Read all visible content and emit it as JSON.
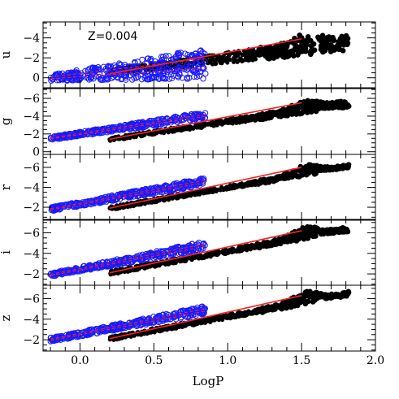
{
  "chart_data": {
    "type": "scatter",
    "annotation": "Z=0.004",
    "xlabel": "LogP",
    "xlim": [
      -0.25,
      2.0
    ],
    "x_ticks": [
      0.0,
      0.5,
      1.0,
      1.5,
      2.0
    ],
    "x_tick_labels": [
      "0.0",
      "0.5",
      "1.0",
      "1.5",
      "2.0"
    ],
    "colors": {
      "fundamental": "#000000",
      "first_overtone": "#1a1aff",
      "fit_line": "#ff2020"
    },
    "panels": [
      {
        "band": "u",
        "ylabel": "u",
        "ylim": [
          1.0,
          -5.6
        ],
        "y_ticks": [
          0,
          -2,
          -4
        ],
        "y_tick_labels": [
          "0",
          "−2",
          "−4"
        ],
        "first_overtone": {
          "x_range": [
            -0.2,
            0.85
          ],
          "y_low": [
            0.3,
            0.1
          ],
          "y_high": [
            -0.3,
            -3.0
          ]
        },
        "fundamental": {
          "x_range": [
            0.2,
            1.82
          ],
          "y_low": [
            -0.3,
            -2.7
          ],
          "y_high": [
            -0.9,
            -4.3
          ],
          "peak_x": 1.55,
          "peak_y": -4.5
        },
        "fit": {
          "x": [
            0.2,
            1.5
          ],
          "y": [
            -0.4,
            -3.9
          ]
        }
      },
      {
        "band": "g",
        "ylabel": "g",
        "ylim": [
          0.3,
          -7.1
        ],
        "y_ticks": [
          0,
          -2,
          -4,
          -6
        ],
        "y_tick_labels": [
          "0",
          "−2",
          "−4",
          "−6"
        ],
        "first_overtone": {
          "x_range": [
            -0.2,
            0.85
          ],
          "y_low": [
            -1.3,
            -3.7
          ],
          "y_high": [
            -1.7,
            -4.5
          ]
        },
        "fundamental": {
          "x_range": [
            0.2,
            1.82
          ],
          "y_low": [
            -1.2,
            -5.0
          ],
          "y_high": [
            -1.6,
            -5.8
          ],
          "peak_x": 1.55,
          "peak_y": -5.8
        },
        "fit": {
          "x": [
            0.2,
            1.5
          ],
          "y": [
            -1.4,
            -5.5
          ]
        }
      },
      {
        "band": "r",
        "ylabel": "r",
        "ylim": [
          -0.7,
          -7.3
        ],
        "y_ticks": [
          -2,
          -4,
          -6
        ],
        "y_tick_labels": [
          "−2",
          "−4",
          "−6"
        ],
        "first_overtone": {
          "x_range": [
            -0.2,
            0.85
          ],
          "y_low": [
            -1.6,
            -4.2
          ],
          "y_high": [
            -2.0,
            -5.0
          ]
        },
        "fundamental": {
          "x_range": [
            0.2,
            1.82
          ],
          "y_low": [
            -1.7,
            -5.9
          ],
          "y_high": [
            -2.1,
            -6.3
          ],
          "peak_x": 1.55,
          "peak_y": -6.3
        },
        "fit": {
          "x": [
            0.2,
            1.5
          ],
          "y": [
            -1.9,
            -6.0
          ]
        }
      },
      {
        "band": "i",
        "ylabel": "i",
        "ylim": [
          -0.9,
          -7.3
        ],
        "y_ticks": [
          -2,
          -4,
          -6
        ],
        "y_tick_labels": [
          "−2",
          "−4",
          "−6"
        ],
        "first_overtone": {
          "x_range": [
            -0.2,
            0.85
          ],
          "y_low": [
            -1.7,
            -4.4
          ],
          "y_high": [
            -2.1,
            -5.2
          ]
        },
        "fundamental": {
          "x_range": [
            0.2,
            1.82
          ],
          "y_low": [
            -1.9,
            -6.1
          ],
          "y_high": [
            -2.3,
            -6.6
          ],
          "peak_x": 1.55,
          "peak_y": -6.6
        },
        "fit": {
          "x": [
            0.2,
            1.5
          ],
          "y": [
            -2.1,
            -6.2
          ]
        }
      },
      {
        "band": "z",
        "ylabel": "z",
        "ylim": [
          -0.9,
          -7.3
        ],
        "y_ticks": [
          -2,
          -4,
          -6
        ],
        "y_tick_labels": [
          "−2",
          "−4",
          "−6"
        ],
        "first_overtone": {
          "x_range": [
            -0.2,
            0.85
          ],
          "y_low": [
            -1.8,
            -4.5
          ],
          "y_high": [
            -2.2,
            -5.3
          ]
        },
        "fundamental": {
          "x_range": [
            0.2,
            1.82
          ],
          "y_low": [
            -1.9,
            -6.2
          ],
          "y_high": [
            -2.3,
            -6.7
          ],
          "peak_x": 1.55,
          "peak_y": -6.7
        },
        "fit": {
          "x": [
            0.2,
            1.5
          ],
          "y": [
            -2.1,
            -6.3
          ]
        }
      }
    ]
  }
}
